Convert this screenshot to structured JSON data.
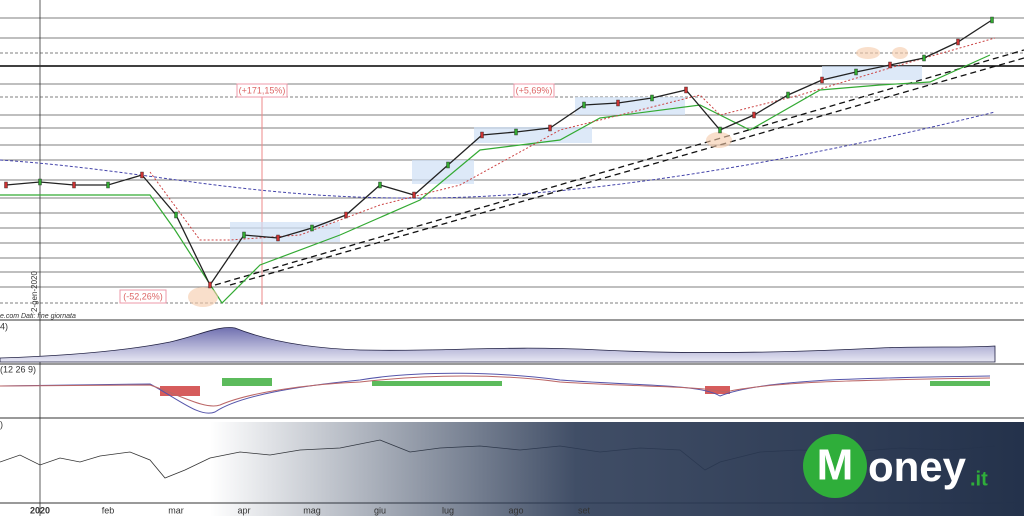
{
  "chart_data": {
    "type": "line",
    "categories": [
      null,
      "2020",
      null,
      "feb",
      null,
      "mar",
      null,
      "apr",
      null,
      "mag",
      null,
      "giu",
      null,
      "lug",
      null,
      "ago",
      null,
      "set",
      null,
      null,
      null,
      null,
      null,
      null,
      null,
      null,
      null,
      null,
      null,
      null
    ],
    "values": [
      125,
      128,
      125,
      125,
      135,
      95,
      25,
      75,
      72,
      82,
      95,
      125,
      115,
      145,
      175,
      178,
      182,
      205,
      207,
      212,
      220,
      180,
      195,
      215,
      230,
      238,
      245,
      252,
      268,
      290
    ],
    "color": "#222",
    "ylim": [
      0,
      310
    ],
    "annotations": [
      "(+171,15%)",
      "(+5,69%)",
      "(-52,26%)"
    ],
    "date_label": "2-gen-2020",
    "source": "e.com  Dati: fine giornata",
    "panel_labels": [
      "4)",
      "(12 26 9)",
      ")"
    ]
  },
  "logo": {
    "initial": "M",
    "text": "oney",
    "suffix": ".it"
  }
}
